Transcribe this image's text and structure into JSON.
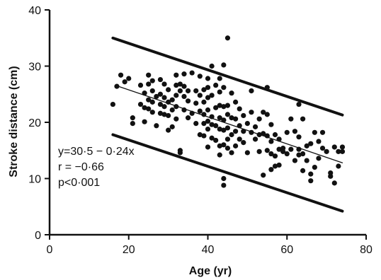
{
  "chart_data": {
    "type": "scatter",
    "title": "",
    "xlabel": "Age (yr)",
    "ylabel": "Stroke distance (cm)",
    "xlim": [
      0,
      80
    ],
    "ylim": [
      0,
      40
    ],
    "x_ticks": [
      "0",
      "20",
      "40",
      "60",
      "80"
    ],
    "y_ticks": [
      "0",
      "10",
      "20",
      "30",
      "40"
    ],
    "grid": false,
    "annotations": [
      "y=30·5 − 0·24x",
      "r = −0·66",
      "p<0·001"
    ],
    "regression_line": {
      "x": [
        17,
        74
      ],
      "y": [
        26.5,
        12.8
      ]
    },
    "upper_limit": {
      "x": [
        16,
        74
      ],
      "y": [
        35,
        21.3
      ]
    },
    "lower_limit": {
      "x": [
        16,
        74
      ],
      "y": [
        17.8,
        4.2
      ]
    },
    "points": [
      [
        16,
        23.2
      ],
      [
        17,
        26.4
      ],
      [
        18,
        28.4
      ],
      [
        19,
        27.2
      ],
      [
        20,
        27.8
      ],
      [
        21,
        20.8
      ],
      [
        21,
        19.8
      ],
      [
        23,
        26.6
      ],
      [
        23,
        23.2
      ],
      [
        24,
        25.2
      ],
      [
        24,
        22.6
      ],
      [
        24,
        20.1
      ],
      [
        25,
        28.4
      ],
      [
        25,
        26.8
      ],
      [
        25,
        24.0
      ],
      [
        25,
        22.4
      ],
      [
        26,
        27.4
      ],
      [
        26,
        25.6
      ],
      [
        26,
        23.6
      ],
      [
        26,
        21.8
      ],
      [
        27,
        24.6
      ],
      [
        27,
        19.4
      ],
      [
        28,
        27.6
      ],
      [
        28,
        25.0
      ],
      [
        28,
        23.2
      ],
      [
        28,
        21.6
      ],
      [
        29,
        26.8
      ],
      [
        29,
        24.4
      ],
      [
        29,
        22.8
      ],
      [
        29,
        21.4
      ],
      [
        30,
        25.8
      ],
      [
        30,
        23.6
      ],
      [
        30,
        21.2
      ],
      [
        30,
        18.6
      ],
      [
        31,
        24.0
      ],
      [
        31,
        22.2
      ],
      [
        31,
        19.2
      ],
      [
        32,
        28.4
      ],
      [
        32,
        26.6
      ],
      [
        32,
        24.8
      ],
      [
        32,
        22.8
      ],
      [
        32,
        20.6
      ],
      [
        33,
        26.8
      ],
      [
        33,
        25.6
      ],
      [
        33,
        15.0
      ],
      [
        33,
        14.6
      ],
      [
        34,
        28.6
      ],
      [
        34,
        26.4
      ],
      [
        34,
        24.6
      ],
      [
        34,
        22.2
      ],
      [
        35,
        25.6
      ],
      [
        35,
        23.8
      ],
      [
        35,
        20.8
      ],
      [
        36,
        28.8
      ],
      [
        36,
        21.6
      ],
      [
        37,
        25.6
      ],
      [
        37,
        23.4
      ],
      [
        37,
        19.8
      ],
      [
        38,
        28.2
      ],
      [
        38,
        24.8
      ],
      [
        38,
        22.0
      ],
      [
        38,
        17.8
      ],
      [
        39,
        25.8
      ],
      [
        39,
        23.6
      ],
      [
        39,
        21.4
      ],
      [
        39,
        19.8
      ],
      [
        39,
        17.6
      ],
      [
        40,
        27.8
      ],
      [
        40,
        26.2
      ],
      [
        40,
        24.4
      ],
      [
        40,
        22.2
      ],
      [
        40,
        20.2
      ],
      [
        40,
        18.8
      ],
      [
        40,
        15.6
      ],
      [
        41,
        30.0
      ],
      [
        41,
        24.8
      ],
      [
        41,
        21.0
      ],
      [
        41,
        19.6
      ],
      [
        41,
        17.2
      ],
      [
        42,
        26.6
      ],
      [
        42,
        22.6
      ],
      [
        42,
        19.4
      ],
      [
        42,
        16.8
      ],
      [
        43,
        27.8
      ],
      [
        43,
        25.4
      ],
      [
        43,
        23.0
      ],
      [
        43,
        20.8
      ],
      [
        43,
        18.8
      ],
      [
        43,
        15.8
      ],
      [
        43,
        14.2
      ],
      [
        44,
        30.2
      ],
      [
        44,
        26.2
      ],
      [
        44,
        22.8
      ],
      [
        44,
        20.4
      ],
      [
        44,
        18.6
      ],
      [
        44,
        16.0
      ],
      [
        44,
        10.0
      ],
      [
        44,
        8.8
      ],
      [
        45,
        35.0
      ],
      [
        45,
        23.0
      ],
      [
        45,
        21.4
      ],
      [
        45,
        19.0
      ],
      [
        45,
        17.0
      ],
      [
        45,
        15.4
      ],
      [
        46,
        25.2
      ],
      [
        46,
        20.8
      ],
      [
        46,
        17.8
      ],
      [
        46,
        14.6
      ],
      [
        47,
        23.6
      ],
      [
        47,
        20.6
      ],
      [
        47,
        18.4
      ],
      [
        47,
        15.8
      ],
      [
        48,
        22.4
      ],
      [
        48,
        19.4
      ],
      [
        48,
        17.0
      ],
      [
        49,
        21.2
      ],
      [
        49,
        18.4
      ],
      [
        49,
        16.4
      ],
      [
        50,
        19.8
      ],
      [
        50,
        14.6
      ],
      [
        51,
        25.6
      ],
      [
        51,
        21.8
      ],
      [
        51,
        18.2
      ],
      [
        52,
        19.2
      ],
      [
        52,
        17.0
      ],
      [
        53,
        20.6
      ],
      [
        53,
        17.8
      ],
      [
        53,
        14.8
      ],
      [
        54,
        21.8
      ],
      [
        54,
        18.0
      ],
      [
        54,
        10.6
      ],
      [
        55,
        26.2
      ],
      [
        55,
        21.4
      ],
      [
        55,
        17.6
      ],
      [
        55,
        15.0
      ],
      [
        56,
        19.6
      ],
      [
        56,
        16.6
      ],
      [
        56,
        14.4
      ],
      [
        56,
        11.6
      ],
      [
        57,
        17.8
      ],
      [
        57,
        14.0
      ],
      [
        57,
        12.2
      ],
      [
        58,
        17.0
      ],
      [
        58,
        15.2
      ],
      [
        58,
        12.4
      ],
      [
        59,
        15.4
      ],
      [
        59,
        14.8
      ],
      [
        60,
        18.2
      ],
      [
        60,
        14.4
      ],
      [
        61,
        20.6
      ],
      [
        61,
        15.2
      ],
      [
        62,
        18.4
      ],
      [
        62,
        13.2
      ],
      [
        63,
        23.2
      ],
      [
        63,
        17.4
      ],
      [
        63,
        15.2
      ],
      [
        63,
        14.2
      ],
      [
        64,
        20.6
      ],
      [
        64,
        14.4
      ],
      [
        64,
        11.4
      ],
      [
        65,
        15.8
      ],
      [
        65,
        13.2
      ],
      [
        66,
        16.2
      ],
      [
        66,
        10.8
      ],
      [
        66,
        9.6
      ],
      [
        67,
        18.2
      ],
      [
        67,
        12.0
      ],
      [
        68,
        16.6
      ],
      [
        68,
        13.6
      ],
      [
        69,
        18.2
      ],
      [
        69,
        15.4
      ],
      [
        70,
        14.8
      ],
      [
        71,
        11.0
      ],
      [
        71,
        10.4
      ],
      [
        72,
        15.6
      ],
      [
        72,
        9.2
      ],
      [
        73,
        12.2
      ],
      [
        73,
        14.8
      ],
      [
        74,
        15.6
      ],
      [
        74,
        14.8
      ]
    ]
  }
}
